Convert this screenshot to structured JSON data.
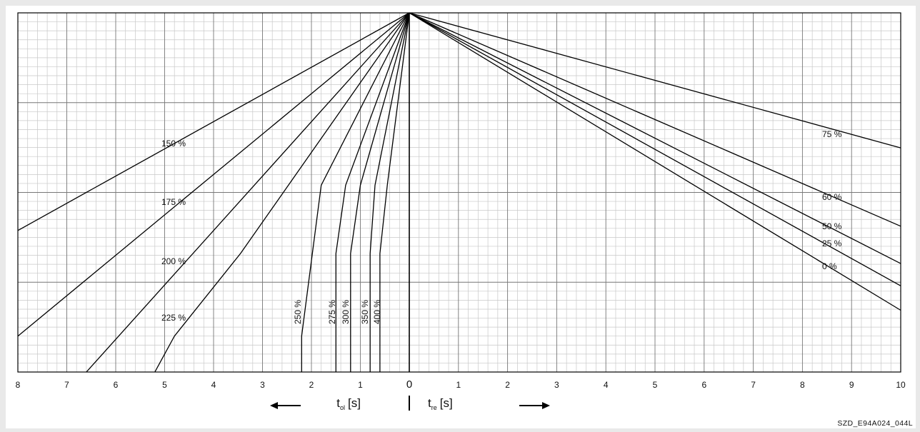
{
  "chart_data": {
    "type": "line",
    "x_left": {
      "ticks": [
        8,
        7,
        6,
        5,
        4,
        3,
        2,
        1,
        0
      ],
      "symbol": "t",
      "subscript": "ol",
      "unit": "[s]",
      "arrow": "left"
    },
    "x_right": {
      "ticks": [
        0,
        1,
        2,
        3,
        4,
        5,
        6,
        7,
        8,
        9,
        10
      ],
      "symbol": "t",
      "subscript": "re",
      "unit": "[s]",
      "arrow": "right"
    },
    "center_tick": "0",
    "grid": true,
    "overload_series": [
      {
        "name": "150 %",
        "points": [
          [
            0,
            1.0
          ],
          [
            8,
            0.394
          ]
        ]
      },
      {
        "name": "175 %",
        "points": [
          [
            0,
            1.0
          ],
          [
            8,
            0.1
          ]
        ]
      },
      {
        "name": "200 %",
        "points": [
          [
            0,
            1.0
          ],
          [
            6.6,
            0.0
          ]
        ]
      },
      {
        "name": "225 %",
        "points": [
          [
            0,
            1.0
          ],
          [
            3.45,
            0.33
          ],
          [
            4.8,
            0.1
          ],
          [
            5.2,
            0.0
          ]
        ]
      },
      {
        "name": "250 %",
        "points": [
          [
            0,
            1.0
          ],
          [
            1.8,
            0.52
          ],
          [
            2.2,
            0.1
          ],
          [
            2.2,
            0.0
          ]
        ]
      },
      {
        "name": "275 %",
        "points": [
          [
            0,
            1.0
          ],
          [
            1.3,
            0.52
          ],
          [
            1.5,
            0.33
          ],
          [
            1.5,
            0.0
          ]
        ]
      },
      {
        "name": "300 %",
        "points": [
          [
            0,
            1.0
          ],
          [
            1.0,
            0.52
          ],
          [
            1.2,
            0.33
          ],
          [
            1.2,
            0.0
          ]
        ]
      },
      {
        "name": "350 %",
        "points": [
          [
            0,
            1.0
          ],
          [
            0.7,
            0.52
          ],
          [
            0.8,
            0.33
          ],
          [
            0.8,
            0.0
          ]
        ]
      },
      {
        "name": "400 %",
        "points": [
          [
            0,
            1.0
          ],
          [
            0.45,
            0.52
          ],
          [
            0.6,
            0.33
          ],
          [
            0.6,
            0.0
          ]
        ]
      }
    ],
    "recovery_series": [
      {
        "name": "75 %",
        "points": [
          [
            0,
            1.0
          ],
          [
            10,
            0.624
          ]
        ]
      },
      {
        "name": "60 %",
        "points": [
          [
            0,
            1.0
          ],
          [
            10,
            0.406
          ]
        ]
      },
      {
        "name": "50 %",
        "points": [
          [
            0,
            1.0
          ],
          [
            10,
            0.302
          ]
        ]
      },
      {
        "name": "25 %",
        "points": [
          [
            0,
            1.0
          ],
          [
            10,
            0.24
          ]
        ]
      },
      {
        "name": "0 %",
        "points": [
          [
            0,
            1.0
          ],
          [
            10,
            0.172
          ]
        ]
      }
    ],
    "figure_id": "SZD_E94A024_044L"
  }
}
